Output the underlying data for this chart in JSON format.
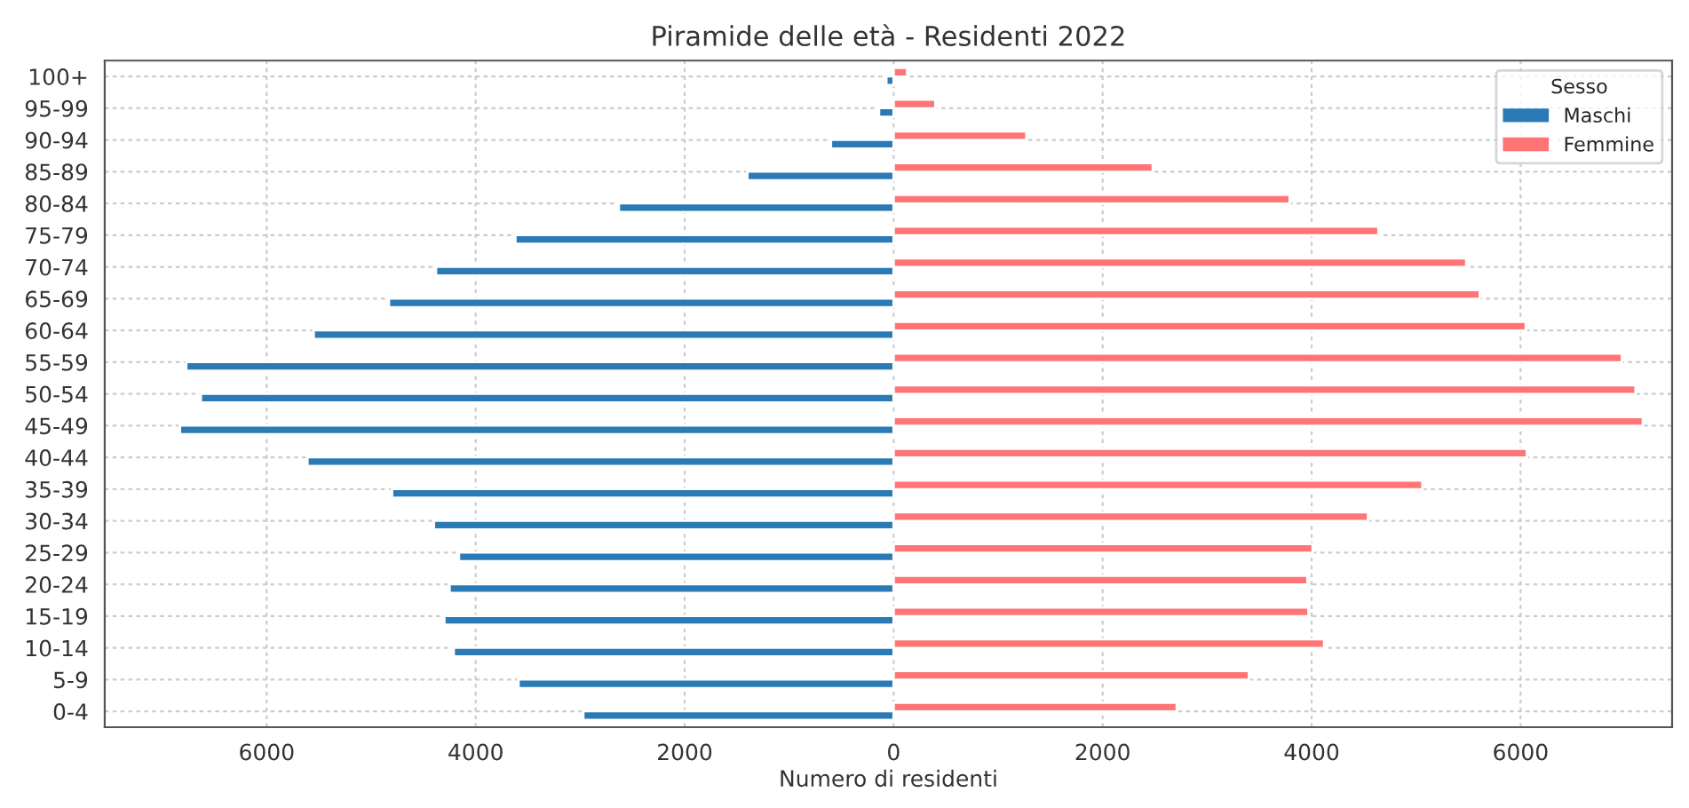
{
  "chart_data": {
    "type": "bar",
    "orientation": "horizontal",
    "title": "Piramide delle età - Residenti 2022",
    "xlabel": "Numero di residenti",
    "legend_title": "Sesso",
    "categories": [
      "100+",
      "95-99",
      "90-94",
      "85-89",
      "80-84",
      "75-79",
      "70-74",
      "65-69",
      "60-64",
      "55-59",
      "50-54",
      "45-49",
      "40-44",
      "35-39",
      "30-34",
      "25-29",
      "20-24",
      "15-19",
      "10-14",
      "5-9",
      "0-4"
    ],
    "series": [
      {
        "name": "Maschi",
        "color": "#2a7ab5",
        "values": [
          -70,
          -140,
          -600,
          -1400,
          -2630,
          -3620,
          -4380,
          -4830,
          -5550,
          -6770,
          -6630,
          -6830,
          -5610,
          -4800,
          -4400,
          -4160,
          -4250,
          -4300,
          -4210,
          -3590,
          -2970
        ]
      },
      {
        "name": "Femmine",
        "color": "#ff7576",
        "values": [
          130,
          400,
          1270,
          2480,
          3790,
          4640,
          5480,
          5610,
          6050,
          6970,
          7100,
          7170,
          6060,
          5060,
          4540,
          4010,
          3960,
          3970,
          4120,
          3400,
          2710
        ]
      }
    ],
    "xlim": [
      -7550,
      7450
    ],
    "xticks": [
      {
        "value": -6000,
        "label": "6000"
      },
      {
        "value": -4000,
        "label": "4000"
      },
      {
        "value": -2000,
        "label": "2000"
      },
      0,
      2000,
      4000,
      6000
    ],
    "grid": true,
    "legend": "top right"
  }
}
